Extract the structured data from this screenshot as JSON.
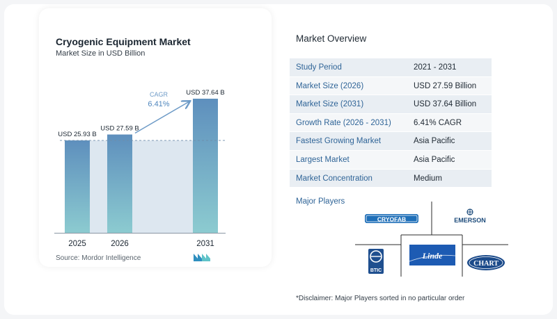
{
  "chart_data": {
    "type": "bar",
    "title": "Cryogenic Equipment Market",
    "subtitle": "Market Size in USD Billion",
    "categories": [
      "2025",
      "2026",
      "2031"
    ],
    "values": [
      25.93,
      27.59,
      37.64
    ],
    "value_labels": [
      "USD 25.93 B",
      "USD 27.59 B",
      "USD 37.64 B"
    ],
    "ylim": [
      0,
      40
    ],
    "grid": false,
    "cagr_label": "CAGR",
    "cagr_value": "6.41%",
    "source": "Source:  Mordor Intelligence",
    "colors": {
      "bar_top": "#5e8fbd",
      "bar_bottom": "#8ccbd0",
      "band": "#dde7f0",
      "arrow": "#6e9bc7",
      "baseline": "#8a96a3"
    }
  },
  "overview": {
    "title": "Market Overview",
    "rows": [
      {
        "label": "Study Period",
        "value": "2021 - 2031"
      },
      {
        "label": "Market Size (2026)",
        "value": "USD 27.59 Billion"
      },
      {
        "label": "Market Size (2031)",
        "value": "USD 37.64 Billion"
      },
      {
        "label": "Growth Rate (2026 - 2031)",
        "value": "6.41% CAGR"
      },
      {
        "label": "Fastest Growing Market",
        "value": "Asia Pacific"
      },
      {
        "label": "Largest Market",
        "value": "Asia Pacific"
      },
      {
        "label": "Market Concentration",
        "value": "Medium"
      }
    ]
  },
  "players": {
    "title": "Major Players",
    "logos": [
      "CRYOFAB",
      "EMERSON",
      "BTIC",
      "Linde",
      "CHART"
    ]
  },
  "disclaimer": "*Disclaimer: Major Players sorted in no particular order"
}
